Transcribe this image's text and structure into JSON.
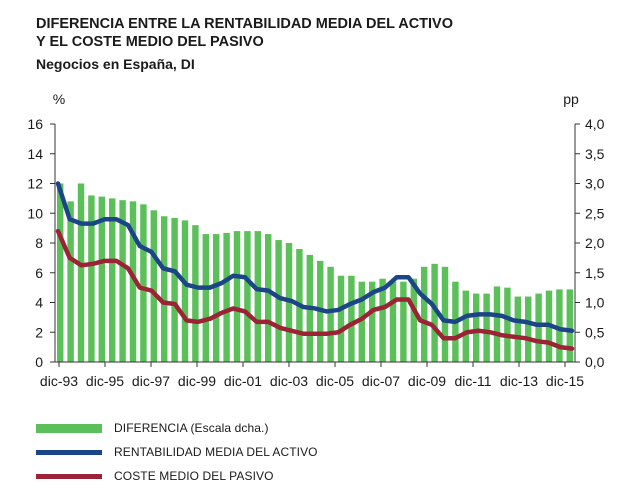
{
  "header": {
    "title_line1": "DIFERENCIA ENTRE LA RENTABILIDAD MEDIA DEL ACTIVO",
    "title_line2": "Y EL COSTE MEDIO DEL PASIVO",
    "subtitle": "Negocios en España, DI"
  },
  "legend": {
    "items": [
      {
        "label": "DIFERENCIA (Escala dcha.)",
        "color": "#5cc05a"
      },
      {
        "label": "RENTABILIDAD MEDIA DEL ACTIVO",
        "color": "#1c4587"
      },
      {
        "label": "COSTE MEDIO DEL PASIVO",
        "color": "#9b2335"
      }
    ]
  },
  "chart_data": {
    "type": "bar",
    "ylabel_left": "%",
    "ylabel_right": "pp",
    "ylim_left": [
      0,
      16
    ],
    "ylim_right": [
      0,
      4
    ],
    "yticks_left": [
      "0",
      "2",
      "4",
      "6",
      "8",
      "10",
      "12",
      "14",
      "16"
    ],
    "yticks_right": [
      "0,0",
      "0,5",
      "1,0",
      "1,5",
      "2,0",
      "2,5",
      "3,0",
      "3,5",
      "4,0"
    ],
    "x_tick_labels": [
      "dic-93",
      "dic-95",
      "dic-97",
      "dic-99",
      "dic-01",
      "dic-03",
      "dic-05",
      "dic-07",
      "dic-09",
      "dic-11",
      "dic-13",
      "dic-15"
    ],
    "grid": false,
    "legend_position": "bottom-left",
    "series": [
      {
        "name": "DIFERENCIA (Escala dcha.)",
        "kind": "bar",
        "axis": "right",
        "color": "#5cc05a",
        "values": [
          3.0,
          2.7,
          3.0,
          2.8,
          2.78,
          2.75,
          2.72,
          2.7,
          2.65,
          2.55,
          2.45,
          2.42,
          2.38,
          2.3,
          2.15,
          2.15,
          2.17,
          2.2,
          2.2,
          2.2,
          2.15,
          2.05,
          2.0,
          1.9,
          1.8,
          1.7,
          1.6,
          1.45,
          1.45,
          1.35,
          1.35,
          1.4,
          1.35,
          1.35,
          1.4,
          1.6,
          1.65,
          1.6,
          1.35,
          1.2,
          1.15,
          1.15,
          1.27,
          1.25,
          1.1,
          1.1,
          1.15,
          1.2,
          1.22,
          1.22
        ]
      },
      {
        "name": "RENTABILIDAD MEDIA DEL ACTIVO",
        "kind": "line",
        "axis": "left",
        "color": "#1c4587",
        "values": [
          12.0,
          9.6,
          9.3,
          9.3,
          9.6,
          9.6,
          9.2,
          7.8,
          7.4,
          6.3,
          6.1,
          5.2,
          5.0,
          5.0,
          5.3,
          5.8,
          5.7,
          4.9,
          4.8,
          4.3,
          4.1,
          3.7,
          3.6,
          3.4,
          3.5,
          3.9,
          4.2,
          4.7,
          5.0,
          5.7,
          5.7,
          4.6,
          3.9,
          2.8,
          2.7,
          3.1,
          3.2,
          3.2,
          3.1,
          2.8,
          2.7,
          2.5,
          2.5,
          2.2,
          2.1
        ]
      },
      {
        "name": "COSTE MEDIO DEL PASIVO",
        "kind": "line",
        "axis": "left",
        "color": "#9b2335",
        "values": [
          8.8,
          7.0,
          6.5,
          6.6,
          6.8,
          6.8,
          6.3,
          5.0,
          4.8,
          4.0,
          3.9,
          2.8,
          2.7,
          2.9,
          3.3,
          3.6,
          3.4,
          2.7,
          2.7,
          2.3,
          2.1,
          1.9,
          1.9,
          1.9,
          2.0,
          2.5,
          2.9,
          3.5,
          3.7,
          4.2,
          4.2,
          2.8,
          2.5,
          1.6,
          1.6,
          2.0,
          2.1,
          2.0,
          1.8,
          1.7,
          1.6,
          1.4,
          1.3,
          1.0,
          0.9
        ]
      }
    ]
  }
}
